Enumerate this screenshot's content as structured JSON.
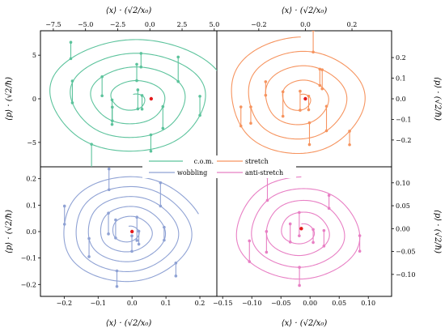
{
  "figure": {
    "x_label": "⟨x⟩ · (√2/x₀)",
    "y_label": "⟨p⟩ · (√2/ħ)",
    "legend": [
      "c.o.m.",
      "stretch",
      "wobbling",
      "anti-stretch"
    ]
  },
  "chart_data": [
    {
      "type": "line",
      "series_name": "c.o.m.",
      "color": "#5cc39c",
      "xlim": [
        -8.5,
        5.2
      ],
      "ylim": [
        -7.8,
        7.8
      ],
      "xticks": [
        -7.5,
        -5.0,
        -2.5,
        0.0,
        2.5,
        5.0
      ],
      "xtick_labels": [
        "−7.5",
        "−5.0",
        "−2.5",
        "0.0",
        "2.5",
        "5.0"
      ],
      "yticks": [
        -5,
        0,
        5
      ],
      "ytick_labels": [
        "−5",
        "0",
        "5"
      ],
      "x_axis_side": "top",
      "y_axis_side": "left",
      "spiral": {
        "cx": -1.3,
        "cy": 0,
        "r_start": 0.5,
        "r_end": 7.1,
        "x_scale": 1.0,
        "y_scale": 1.0,
        "turns": 4.2
      },
      "center_point": [
        0.1,
        0.0
      ],
      "n_jumps": 14
    },
    {
      "type": "line",
      "series_name": "stretch",
      "color": "#f6945f",
      "xlim": [
        -0.38,
        0.37
      ],
      "ylim": [
        -0.33,
        0.33
      ],
      "xticks": [
        -0.2,
        0.0,
        0.2
      ],
      "xtick_labels": [
        "−0.2",
        "0.0",
        "0.2"
      ],
      "yticks": [
        -0.2,
        -0.1,
        0.0,
        0.1,
        0.2
      ],
      "ytick_labels": [
        "−0.2",
        "−0.1",
        "0.0",
        "0.1",
        "0.2"
      ],
      "x_axis_side": "top",
      "y_axis_side": "right",
      "spiral": {
        "cx": -0.02,
        "cy": 0,
        "r_start": 0.02,
        "r_end": 0.3,
        "x_scale": 1.08,
        "y_scale": 1.0,
        "turns": 4.0
      },
      "center_point": [
        0.0,
        0.0
      ],
      "n_jumps": 12
    },
    {
      "type": "line",
      "series_name": "wobbling",
      "color": "#8fa2d4",
      "xlim": [
        -0.27,
        0.25
      ],
      "ylim": [
        -0.245,
        0.245
      ],
      "xticks": [
        -0.2,
        -0.1,
        0.0,
        0.1,
        0.2
      ],
      "xtick_labels": [
        "−0.2",
        "−0.1",
        "0.0",
        "0.1",
        "0.2"
      ],
      "yticks": [
        -0.2,
        -0.1,
        0.0,
        0.1,
        0.2
      ],
      "ytick_labels": [
        "−0.2",
        "−0.1",
        "0.0",
        "0.1",
        "0.2"
      ],
      "x_axis_side": "bottom",
      "y_axis_side": "left",
      "spiral": {
        "cx": -0.01,
        "cy": 0,
        "r_start": 0.02,
        "r_end": 0.215,
        "x_scale": 1.0,
        "y_scale": 1.0,
        "turns": 5.2
      },
      "center_point": [
        0.0,
        0.0
      ],
      "n_jumps": 12
    },
    {
      "type": "line",
      "series_name": "anti-stretch",
      "color": "#e87fc4",
      "xlim": [
        -0.16,
        0.14
      ],
      "ylim": [
        -0.148,
        0.135
      ],
      "xticks": [
        -0.15,
        -0.1,
        -0.05,
        0.0,
        0.05,
        0.1
      ],
      "xtick_labels": [
        "−0.15",
        "−0.10",
        "−0.05",
        "0.00",
        "0.05",
        "0.10"
      ],
      "yticks": [
        -0.15,
        -0.1,
        -0.05,
        0.0,
        0.05,
        0.1
      ],
      "ytick_labels": [
        "−0.15",
        "−0.10",
        "−0.05",
        "0.00",
        "0.05",
        "0.10"
      ],
      "x_axis_side": "bottom",
      "y_axis_side": "right",
      "spiral": {
        "cx": -0.015,
        "cy": -0.005,
        "r_start": 0.015,
        "r_end": 0.118,
        "x_scale": 1.0,
        "y_scale": 1.0,
        "turns": 4.0
      },
      "center_point": [
        -0.015,
        0.0
      ],
      "n_jumps": 10
    }
  ]
}
